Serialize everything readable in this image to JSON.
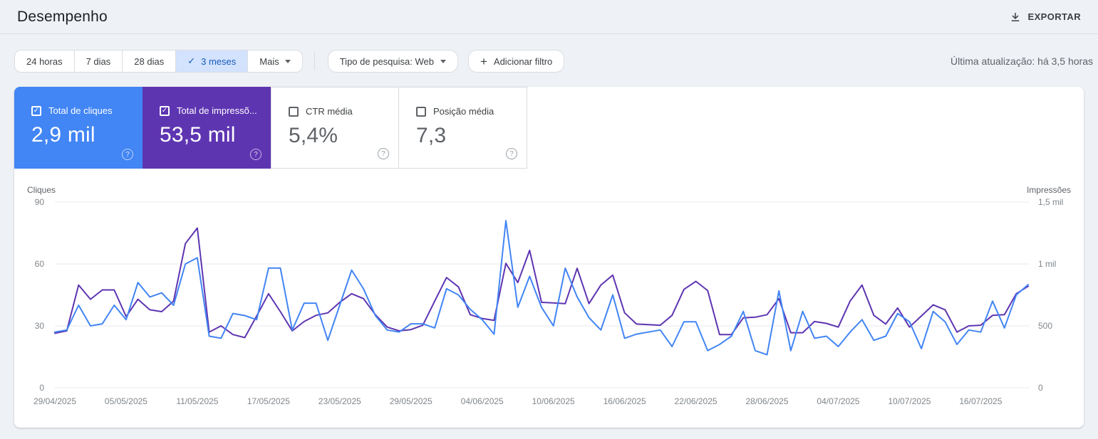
{
  "header": {
    "title": "Desempenho",
    "export_label": "EXPORTAR"
  },
  "filters": {
    "tabs": [
      {
        "label": "24 horas",
        "selected": false
      },
      {
        "label": "7 dias",
        "selected": false
      },
      {
        "label": "28 dias",
        "selected": false
      },
      {
        "label": "3 meses",
        "selected": true
      },
      {
        "label": "Mais",
        "selected": false,
        "has_dropdown": true
      }
    ],
    "search_type_label": "Tipo de pesquisa: Web",
    "add_filter_label": "Adicionar filtro",
    "last_update": "Última atualização: há 3,5 horas"
  },
  "metrics": {
    "cards": [
      {
        "label": "Total de cliques",
        "value": "2,9 mil",
        "checked": true,
        "color": "#4285f4"
      },
      {
        "label": "Total de impressõ...",
        "value": "53,5 mil",
        "checked": true,
        "color": "#5e35b1"
      },
      {
        "label": "CTR média",
        "value": "5,4%",
        "checked": false,
        "color": "#ffffff"
      },
      {
        "label": "Posição média",
        "value": "7,3",
        "checked": false,
        "color": "#ffffff"
      }
    ]
  },
  "colors": {
    "clicks": "#4285f4",
    "impressions": "#5e35b1",
    "page_bg": "#eef1f6",
    "selected_tab_bg": "#d3e3fd",
    "selected_tab_fg": "#185abc",
    "gridline": "#e8eaed",
    "tick_text": "#80868b",
    "axis_title_text": "#5f6368"
  },
  "chart_data": {
    "type": "line",
    "interval": "daily",
    "start_date": "29/04/2025",
    "end_date": "20/07/2025",
    "left_axis": {
      "title": "Cliques",
      "max": 90,
      "ticks": [
        {
          "value": 90,
          "label": "90"
        },
        {
          "value": 60,
          "label": "60"
        },
        {
          "value": 30,
          "label": "30"
        },
        {
          "value": 0,
          "label": "0"
        }
      ]
    },
    "right_axis": {
      "title": "Impressões",
      "max": 1500,
      "ticks": [
        {
          "value": 1500,
          "label": "1,5 mil"
        },
        {
          "value": 1000,
          "label": "1 mil"
        },
        {
          "value": 500,
          "label": "500"
        },
        {
          "value": 0,
          "label": "0"
        }
      ]
    },
    "x_tick_labels": [
      {
        "day": 0,
        "label": "29/04/2025"
      },
      {
        "day": 6,
        "label": "05/05/2025"
      },
      {
        "day": 12,
        "label": "11/05/2025"
      },
      {
        "day": 18,
        "label": "17/05/2025"
      },
      {
        "day": 24,
        "label": "23/05/2025"
      },
      {
        "day": 30,
        "label": "29/05/2025"
      },
      {
        "day": 36,
        "label": "04/06/2025"
      },
      {
        "day": 42,
        "label": "10/06/2025"
      },
      {
        "day": 48,
        "label": "16/06/2025"
      },
      {
        "day": 54,
        "label": "22/06/2025"
      },
      {
        "day": 60,
        "label": "28/06/2025"
      },
      {
        "day": 66,
        "label": "04/07/2025"
      },
      {
        "day": 72,
        "label": "10/07/2025"
      },
      {
        "day": 78,
        "label": "16/07/2025"
      }
    ],
    "series": [
      {
        "name": "Cliques",
        "axis": "left",
        "color": "#4285f4",
        "values": [
          27,
          28,
          40,
          30,
          31,
          40,
          33,
          51,
          44,
          46,
          40,
          60,
          63,
          25,
          24,
          36,
          35,
          33,
          58,
          58,
          28,
          41,
          41,
          23,
          40,
          57,
          48,
          35,
          28,
          27,
          31,
          31,
          29,
          48,
          45,
          38,
          33,
          26,
          81,
          39,
          54,
          39,
          30,
          58,
          44,
          34,
          28,
          45,
          24,
          26,
          27,
          28,
          20,
          32,
          32,
          18,
          21,
          25,
          37,
          18,
          16,
          47,
          18,
          37,
          24,
          25,
          20,
          27,
          33,
          23,
          25,
          36,
          32,
          19,
          37,
          32,
          21,
          28,
          27,
          42,
          29,
          45,
          50
        ]
      },
      {
        "name": "Impressões",
        "axis": "right",
        "color": "#5e35b1",
        "values": [
          440,
          460,
          830,
          715,
          790,
          790,
          575,
          715,
          630,
          615,
          700,
          1165,
          1290,
          450,
          500,
          430,
          405,
          580,
          760,
          615,
          460,
          535,
          585,
          605,
          690,
          760,
          720,
          590,
          490,
          460,
          470,
          505,
          700,
          890,
          815,
          590,
          560,
          545,
          1005,
          850,
          1110,
          690,
          685,
          680,
          965,
          680,
          830,
          910,
          605,
          515,
          510,
          505,
          585,
          795,
          860,
          785,
          430,
          430,
          565,
          570,
          590,
          720,
          445,
          445,
          535,
          520,
          490,
          700,
          830,
          585,
          515,
          645,
          490,
          580,
          670,
          630,
          450,
          500,
          505,
          585,
          590,
          760,
          820
        ]
      }
    ]
  }
}
